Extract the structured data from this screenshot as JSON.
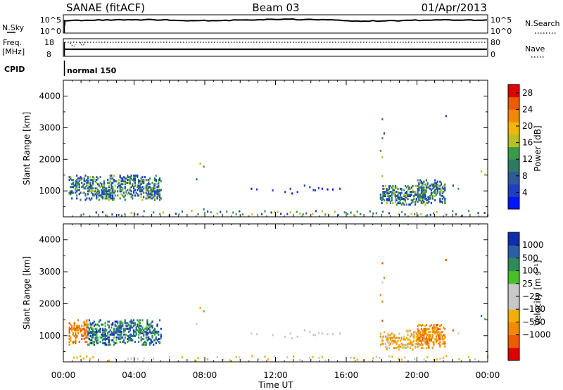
{
  "header": {
    "station": "SANAE (fitACF)",
    "beam": "Beam 03",
    "date": "01/Apr/2013"
  },
  "strips": {
    "nsky_label": "N.Sky",
    "nsky_ticks": [
      "10^5",
      "10^0"
    ],
    "nsearch_label": "N.Search",
    "freq_label": "Freq.",
    "freq_unit": "[MHz]",
    "freq_ticks": [
      "18",
      "8"
    ],
    "nave_label": "Nave",
    "nave_ticks": [
      "80",
      "0"
    ],
    "cpid_label": "CPID",
    "cpid_value": "normal 150"
  },
  "colors": {
    "power_scale": [
      "#0015ff",
      "#1e3fbf",
      "#2c5a9a",
      "#2f7a62",
      "#3a9a4a",
      "#b9c020",
      "#f0b800",
      "#f08a00",
      "#f05a00",
      "#e00000"
    ],
    "velocity_scale": [
      "#e00000",
      "#f05a00",
      "#f08a00",
      "#f0b000",
      "#c8c8c8",
      "#c8c8c8",
      "#49c029",
      "#2e8b57",
      "#2b5fa6",
      "#0f2fa8"
    ],
    "sparse_mix": [
      "#1e3fbf",
      "#2f7a62",
      "#3a9a4a",
      "#b9c020"
    ]
  },
  "chart_data": [
    {
      "type": "heatmap",
      "panel": "power",
      "xlabel": "",
      "ylabel": "Slant Range [km]",
      "xlim": [
        "00:00",
        "24:00"
      ],
      "ylim": [
        180,
        4500
      ],
      "yticks": [
        "1000",
        "2000",
        "3000",
        "4000"
      ],
      "colorbar": {
        "label": "Power [dB]",
        "ticks": [
          "4",
          "8",
          "12",
          "16",
          "20",
          "24",
          "28"
        ],
        "range": [
          0,
          30
        ]
      },
      "echo_regions": [
        {
          "t0": 0.3,
          "t1": 5.5,
          "r0": 700,
          "r1": 1550,
          "value_desc": "8-16 dB"
        },
        {
          "t0": 10.5,
          "t1": 15.8,
          "r0": 900,
          "r1": 1250,
          "value_desc": "4-8 dB"
        },
        {
          "t0": 17.9,
          "t1": 21.6,
          "r0": 600,
          "r1": 1300,
          "value_desc": "4-12 dB"
        },
        {
          "t0": 0.0,
          "t1": 24.0,
          "r0": 180,
          "r1": 450,
          "value_desc": "ground scatter"
        }
      ]
    },
    {
      "type": "heatmap",
      "panel": "velocity",
      "xlabel": "Time UT",
      "ylabel": "Slant Range [km]",
      "xlim": [
        "00:00",
        "24:00"
      ],
      "xticks": [
        "00:00",
        "04:00",
        "08:00",
        "12:00",
        "16:00",
        "20:00",
        "00:00"
      ],
      "ylim": [
        180,
        4500
      ],
      "yticks": [
        "1000",
        "2000",
        "3000",
        "4000"
      ],
      "colorbar": {
        "label": "Velocity [m s⁻¹]",
        "ticks": [
          "1000",
          "500",
          "100",
          "25",
          "−25",
          "−100",
          "−500",
          "−1000"
        ]
      },
      "echo_regions": [
        {
          "t0": 0.3,
          "t1": 1.3,
          "r0": 1000,
          "r1": 1550,
          "value_desc": "-100 to -500 m/s"
        },
        {
          "t0": 1.3,
          "t1": 5.5,
          "r0": 700,
          "r1": 1550,
          "value_desc": "100 to 1000 m/s"
        },
        {
          "t0": 10.5,
          "t1": 15.8,
          "r0": 900,
          "r1": 1250,
          "value_desc": "-25 to 25 m/s"
        },
        {
          "t0": 17.9,
          "t1": 20.5,
          "r0": 600,
          "r1": 1250,
          "value_desc": "-25 to -100 m/s"
        },
        {
          "t0": 20.5,
          "t1": 21.6,
          "r0": 700,
          "r1": 1350,
          "value_desc": "-100 to -500 m/s"
        }
      ]
    }
  ]
}
